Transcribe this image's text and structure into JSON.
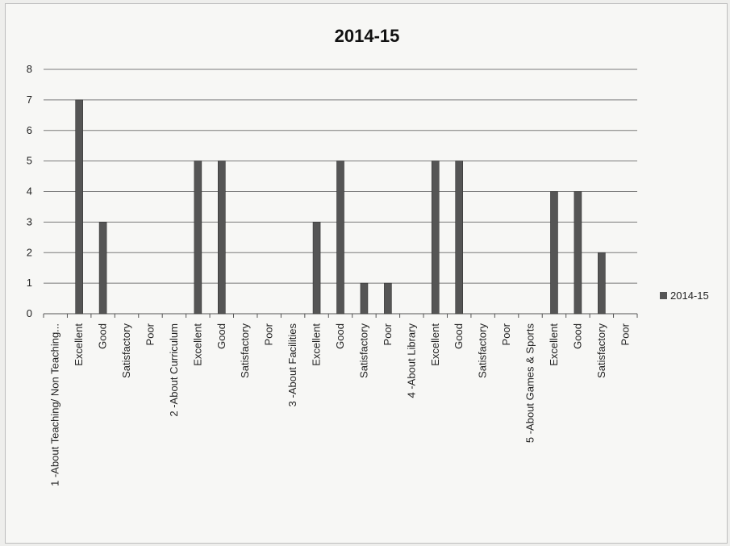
{
  "chart_data": {
    "type": "bar",
    "title": "2014-15",
    "xlabel": "",
    "ylabel": "",
    "ylim": [
      0,
      8
    ],
    "yticks": [
      "0",
      "1",
      "2",
      "3",
      "4",
      "5",
      "6",
      "7",
      "8"
    ],
    "grid": true,
    "legend_position": "right",
    "bar_color": "#555555",
    "categories": [
      "1 -About Teaching/ Non Teaching...",
      "Excellent",
      "Good",
      "Satisfactory",
      "Poor",
      "2 -About Curriculum",
      "Excellent",
      "Good",
      "Satisfactory",
      "Poor",
      "3 -About Facilities",
      "Excellent",
      "Good",
      "Satisfactory",
      "Poor",
      "4 -About Library",
      "Excellent",
      "Good",
      "Satisfactory",
      "Poor",
      "5 -About Games & Sports",
      "Excellent",
      "Good",
      "Satisfactory",
      "Poor"
    ],
    "series": [
      {
        "name": "2014-15",
        "values": [
          null,
          7,
          3,
          0,
          0,
          null,
          5,
          5,
          0,
          0,
          null,
          3,
          5,
          1,
          1,
          null,
          5,
          5,
          0,
          0,
          null,
          4,
          4,
          2,
          0
        ]
      }
    ]
  }
}
